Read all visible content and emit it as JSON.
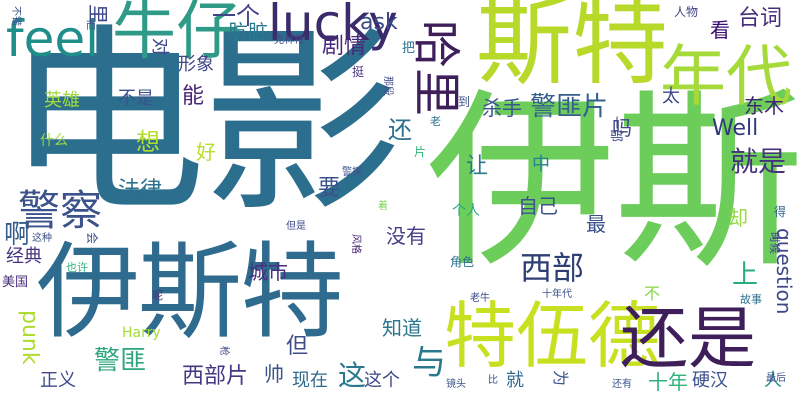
{
  "words": [
    {
      "text": "电影",
      "color": "#2c6e8e"
    },
    {
      "text": "伊斯",
      "color": "#6ccd5a"
    },
    {
      "text": "伊斯特",
      "color": "#2f6b8e"
    },
    {
      "text": "斯特",
      "color": "#b7d92a"
    },
    {
      "text": "特伍德",
      "color": "#c7e020"
    },
    {
      "text": "还是",
      "color": "#3e1f5a"
    },
    {
      "text": "年代",
      "color": "#a6d93a"
    },
    {
      "text": "牛仔",
      "color": "#2e9a87"
    },
    {
      "text": "feel",
      "color": "#1f8e8b"
    },
    {
      "text": "lucky",
      "color": "#3b2b6b"
    },
    {
      "text": "哈里",
      "color": "#3e1f5a"
    },
    {
      "text": "警察",
      "color": "#3b528b"
    },
    {
      "text": "西部",
      "color": "#2e3f73"
    },
    {
      "text": "警匪片",
      "color": "#35608d"
    },
    {
      "text": "警匪",
      "color": "#2fa57f"
    },
    {
      "text": "一个",
      "color": "#414487"
    },
    {
      "text": "肮脏",
      "color": "#2a788e"
    },
    {
      "text": "剧情",
      "color": "#482878"
    },
    {
      "text": "ask",
      "color": "#3a4b88"
    },
    {
      "text": "台词",
      "color": "#472d7b"
    },
    {
      "text": "看",
      "color": "#3b0f70"
    },
    {
      "text": "Well",
      "color": "#31387c"
    },
    {
      "text": "东木",
      "color": "#3f2774"
    },
    {
      "text": "杀手",
      "color": "#39568c"
    },
    {
      "text": "法律",
      "color": "#2c718e"
    },
    {
      "text": "就是",
      "color": "#46327e"
    },
    {
      "text": "自己",
      "color": "#3a538b"
    },
    {
      "text": "没有",
      "color": "#433e85"
    },
    {
      "text": "西部片",
      "color": "#453781"
    },
    {
      "text": "城市",
      "color": "#472f7d"
    },
    {
      "text": "知道",
      "color": "#2a768e"
    },
    {
      "text": "现在",
      "color": "#31688e"
    },
    {
      "text": "这个",
      "color": "#3f4889"
    },
    {
      "text": "正义",
      "color": "#3e4a89"
    },
    {
      "text": "硬汉",
      "color": "#3c508b"
    },
    {
      "text": "经典",
      "color": "#46337e"
    },
    {
      "text": "英雄",
      "color": "#a0da39"
    },
    {
      "text": "不是",
      "color": "#3b528b"
    },
    {
      "text": "形象",
      "color": "#414487"
    },
    {
      "text": "里",
      "color": "#3f4788"
    },
    {
      "text": "对",
      "color": "#3e4c8a"
    },
    {
      "text": "punk",
      "color": "#addc30"
    },
    {
      "text": "question",
      "color": "#3f4788"
    },
    {
      "text": "Harry",
      "color": "#a5db36"
    },
    {
      "text": "美国",
      "color": "#472d7b"
    },
    {
      "text": "与",
      "color": "#2a788e"
    },
    {
      "text": "帅",
      "color": "#3b528b"
    },
    {
      "text": "这",
      "color": "#2a788e"
    },
    {
      "text": "就",
      "color": "#31688e"
    },
    {
      "text": "人",
      "color": "#228d8d"
    },
    {
      "text": "十年",
      "color": "#2db27d"
    },
    {
      "text": "上",
      "color": "#25ac82"
    },
    {
      "text": "还",
      "color": "#2d708e"
    },
    {
      "text": "能",
      "color": "#482475"
    },
    {
      "text": "想",
      "color": "#b4de2c"
    },
    {
      "text": "但",
      "color": "#3e4c8a"
    },
    {
      "text": "让",
      "color": "#2a788e"
    },
    {
      "text": "中",
      "color": "#26828e"
    },
    {
      "text": "吗",
      "color": "#3f4788"
    },
    {
      "text": "最",
      "color": "#3b528b"
    },
    {
      "text": "太",
      "color": "#3f4788"
    },
    {
      "text": "好",
      "color": "#b8de29"
    },
    {
      "text": "啊",
      "color": "#365c8d"
    },
    {
      "text": "却",
      "color": "#95d840"
    },
    {
      "text": "不",
      "color": "#89d548"
    },
    {
      "text": "要",
      "color": "#3b528b"
    },
    {
      "text": "什么",
      "color": "#9bd93c"
    },
    {
      "text": "个人",
      "color": "#22a884"
    },
    {
      "text": "一部",
      "color": "#3e4a89"
    },
    {
      "text": "人物",
      "color": "#414487"
    },
    {
      "text": "到",
      "color": "#3b528b"
    },
    {
      "text": "把",
      "color": "#2d708e"
    },
    {
      "text": "片",
      "color": "#32b67a"
    },
    {
      "text": "挺",
      "color": "#46327e"
    },
    {
      "text": "那段",
      "color": "#3e4c8a"
    },
    {
      "text": "老",
      "color": "#2c728e"
    },
    {
      "text": "克林特",
      "color": "#3f4788"
    },
    {
      "text": "而",
      "color": "#3b528b"
    },
    {
      "text": "不错",
      "color": "#3b528b"
    },
    {
      "text": "警探",
      "color": "#3b528b"
    },
    {
      "text": "着",
      "color": "#7ad151"
    },
    {
      "text": "得",
      "color": "#31688e"
    },
    {
      "text": "时候",
      "color": "#3e4c8a"
    },
    {
      "text": "但是",
      "color": "#3e4989"
    },
    {
      "text": "这种",
      "color": "#3b528b"
    },
    {
      "text": "会",
      "color": "#3b528b"
    },
    {
      "text": "也许",
      "color": "#2fb47c"
    },
    {
      "text": "风格",
      "color": "#482475"
    },
    {
      "text": "角色",
      "color": "#2c728e"
    },
    {
      "text": "老牛",
      "color": "#3e4989"
    },
    {
      "text": "十年代",
      "color": "#3b528b"
    },
    {
      "text": "呢",
      "color": "#46327e"
    },
    {
      "text": "故事",
      "color": "#2c728e"
    },
    {
      "text": "枪",
      "color": "#3e4a89"
    },
    {
      "text": "镜头",
      "color": "#3b528b"
    },
    {
      "text": "比",
      "color": "#3b528b"
    },
    {
      "text": "为",
      "color": "#3b528b"
    },
    {
      "text": "还有",
      "color": "#3b528b"
    },
    {
      "text": "最后",
      "color": "#3b528b"
    }
  ]
}
